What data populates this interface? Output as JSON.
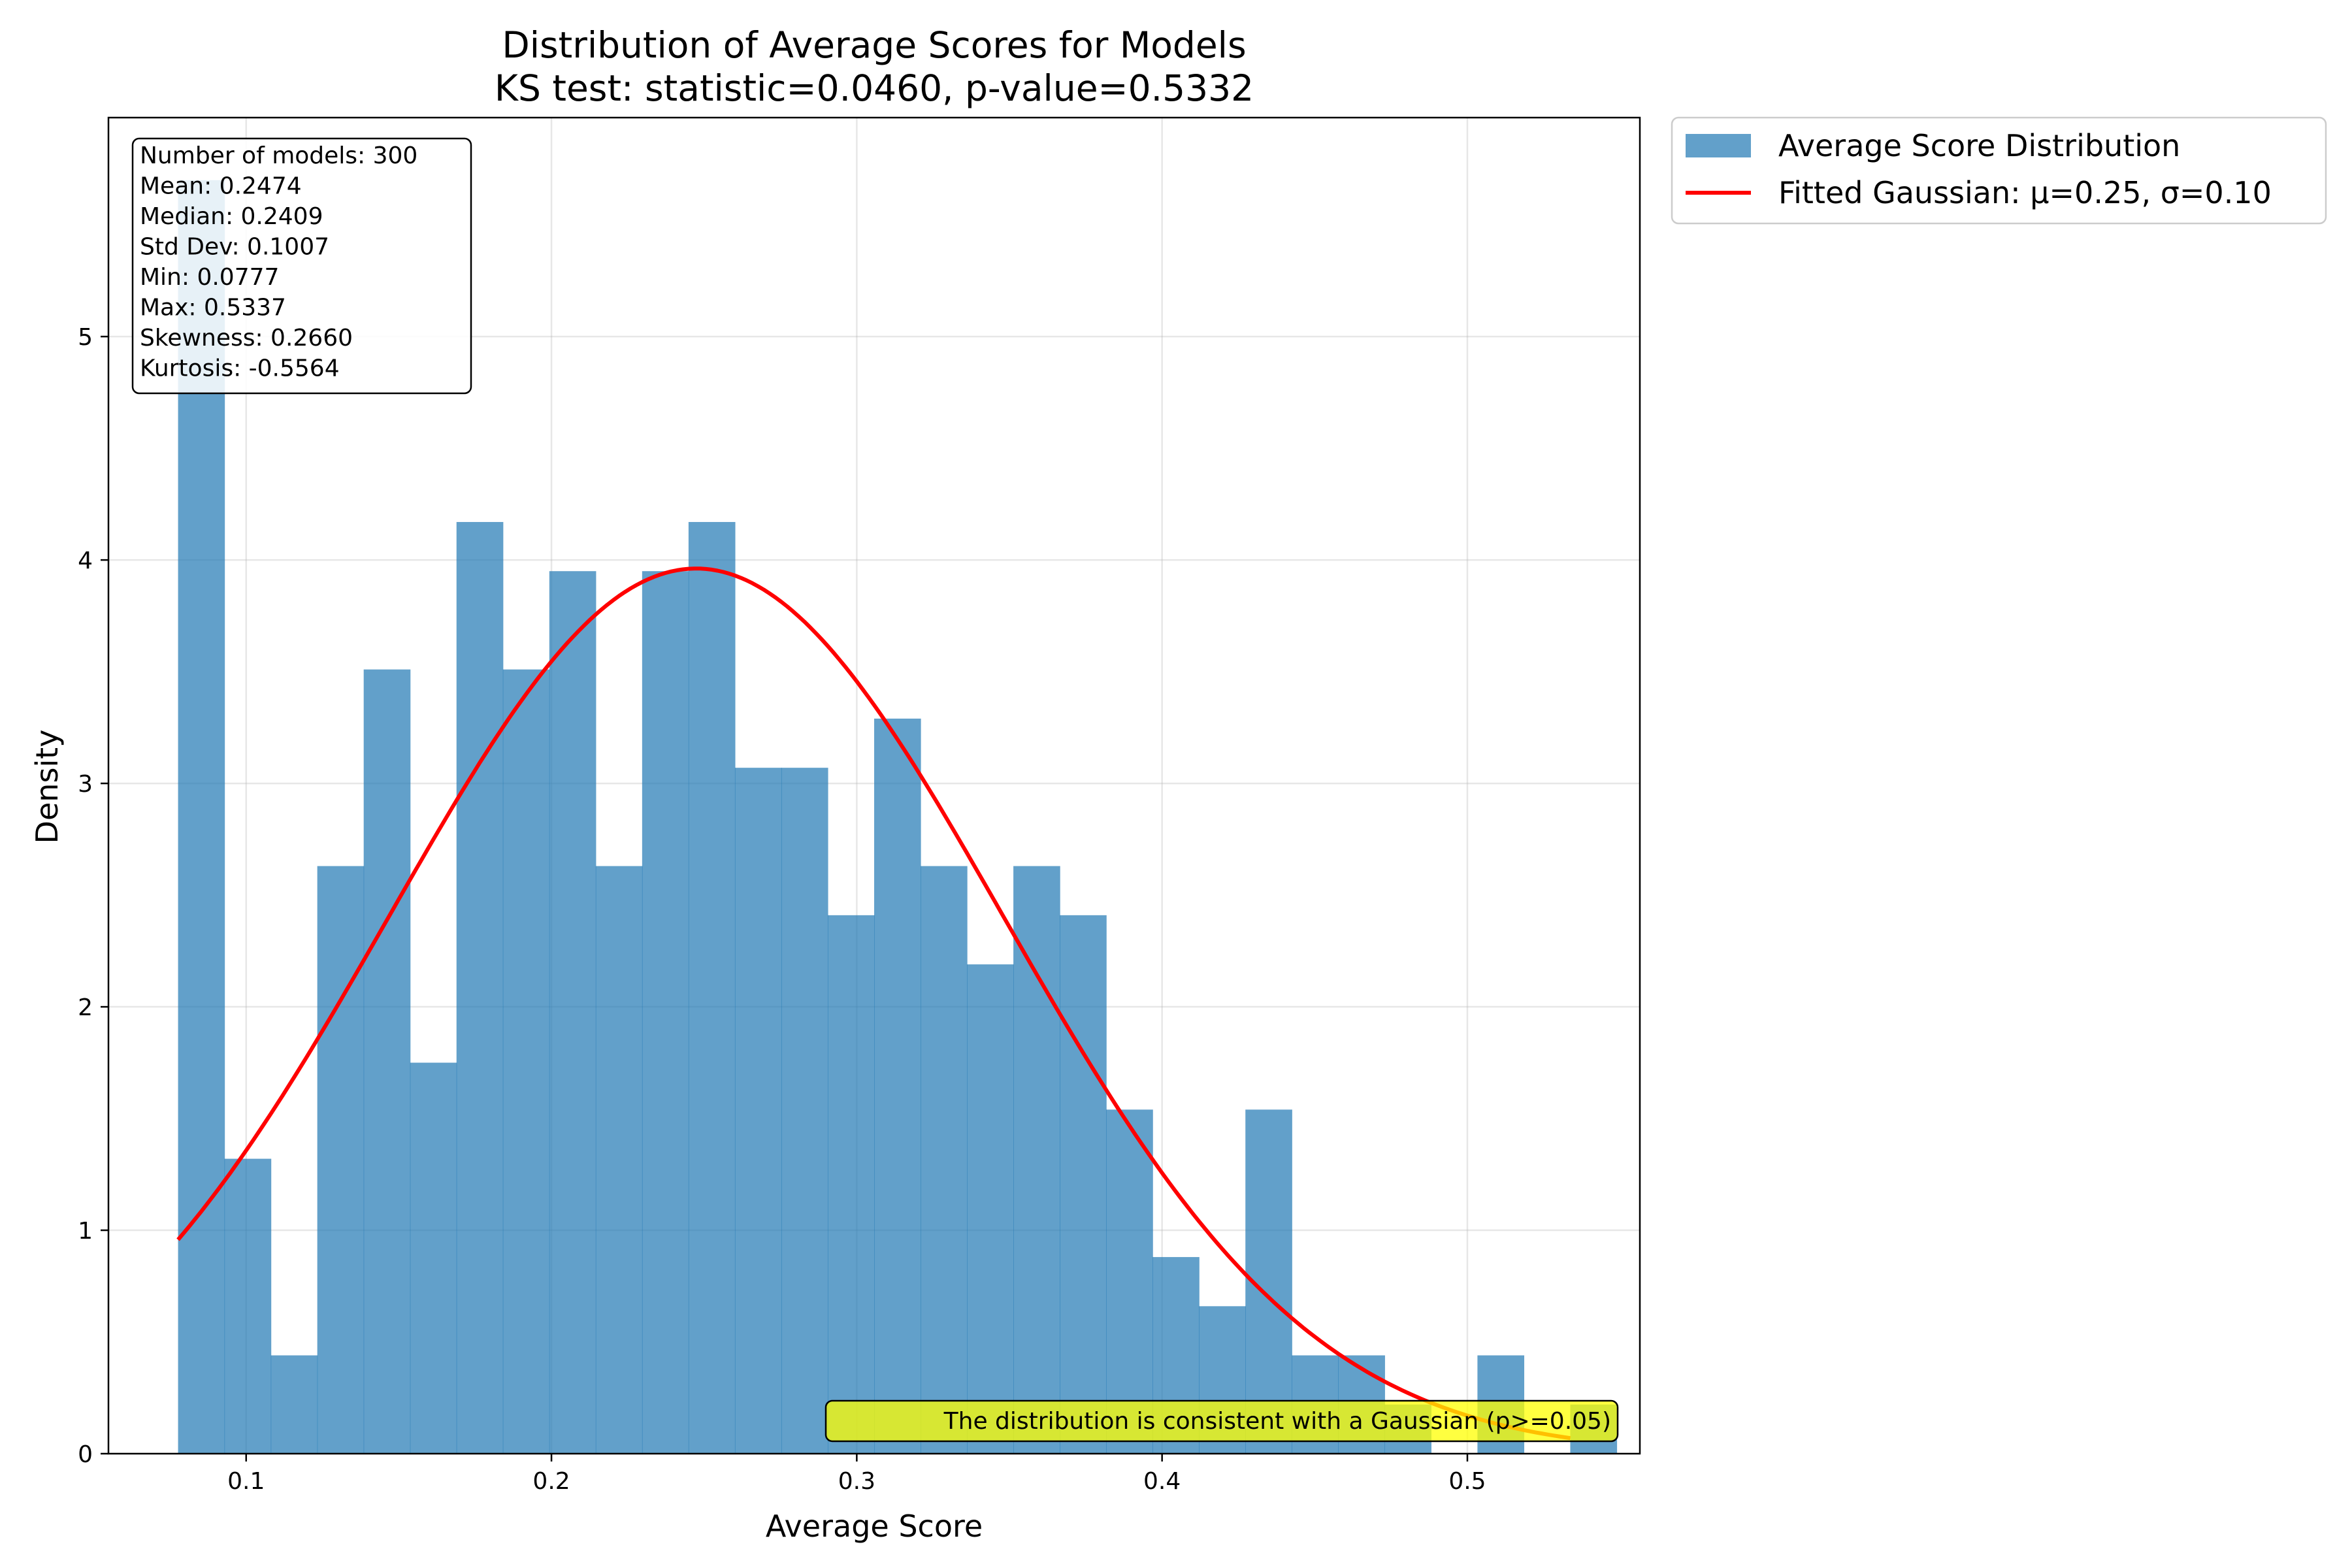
{
  "chart_data": {
    "type": "bar",
    "title": "Distribution of Average Scores for Models",
    "subtitle": "KS test: statistic=0.0460, p-value=0.5332",
    "xlabel": "Average Score",
    "ylabel": "Density",
    "xlim": [
      0.0549,
      0.5565
    ],
    "ylim": [
      0,
      5.98
    ],
    "x_ticks": [
      0.1,
      0.2,
      0.3,
      0.4,
      0.5
    ],
    "x_tick_labels": [
      "0.1",
      "0.2",
      "0.3",
      "0.4",
      "0.5"
    ],
    "y_ticks": [
      0,
      1,
      2,
      3,
      4,
      5
    ],
    "y_tick_labels": [
      "0",
      "1",
      "2",
      "3",
      "4",
      "5"
    ],
    "grid": true,
    "histogram": {
      "name": "Average Score Distribution",
      "color": "#1f77b4",
      "opacity": 0.7,
      "bin_start": 0.0777,
      "bin_width": 0.0152,
      "densities": [
        5.7,
        1.32,
        0.44,
        2.63,
        3.51,
        1.75,
        4.17,
        3.51,
        3.95,
        2.63,
        3.95,
        4.17,
        3.07,
        3.07,
        2.41,
        3.29,
        2.63,
        2.19,
        2.63,
        2.41,
        1.54,
        0.88,
        0.66,
        1.54,
        0.44,
        0.44,
        0.22,
        0.0,
        0.44,
        0.0,
        0.22
      ]
    },
    "gaussian": {
      "name": "Fitted Gaussian: μ=0.25, σ=0.10",
      "color": "#ff0000",
      "mu": 0.2474,
      "sigma": 0.1007,
      "x_range": [
        0.0777,
        0.5337
      ]
    },
    "stats_box": {
      "lines": [
        "Number of models: 300",
        "Mean: 0.2474",
        "Median: 0.2409",
        "Std Dev: 0.1007",
        "Min: 0.0777",
        "Max: 0.5337",
        "Skewness: 0.2660",
        "Kurtosis: -0.5564"
      ]
    },
    "legend_position": "outside-right-top",
    "note": {
      "text": "The distribution is consistent with a Gaussian (p>=0.05)",
      "background": "#ffff00",
      "position": "bottom-right"
    }
  }
}
